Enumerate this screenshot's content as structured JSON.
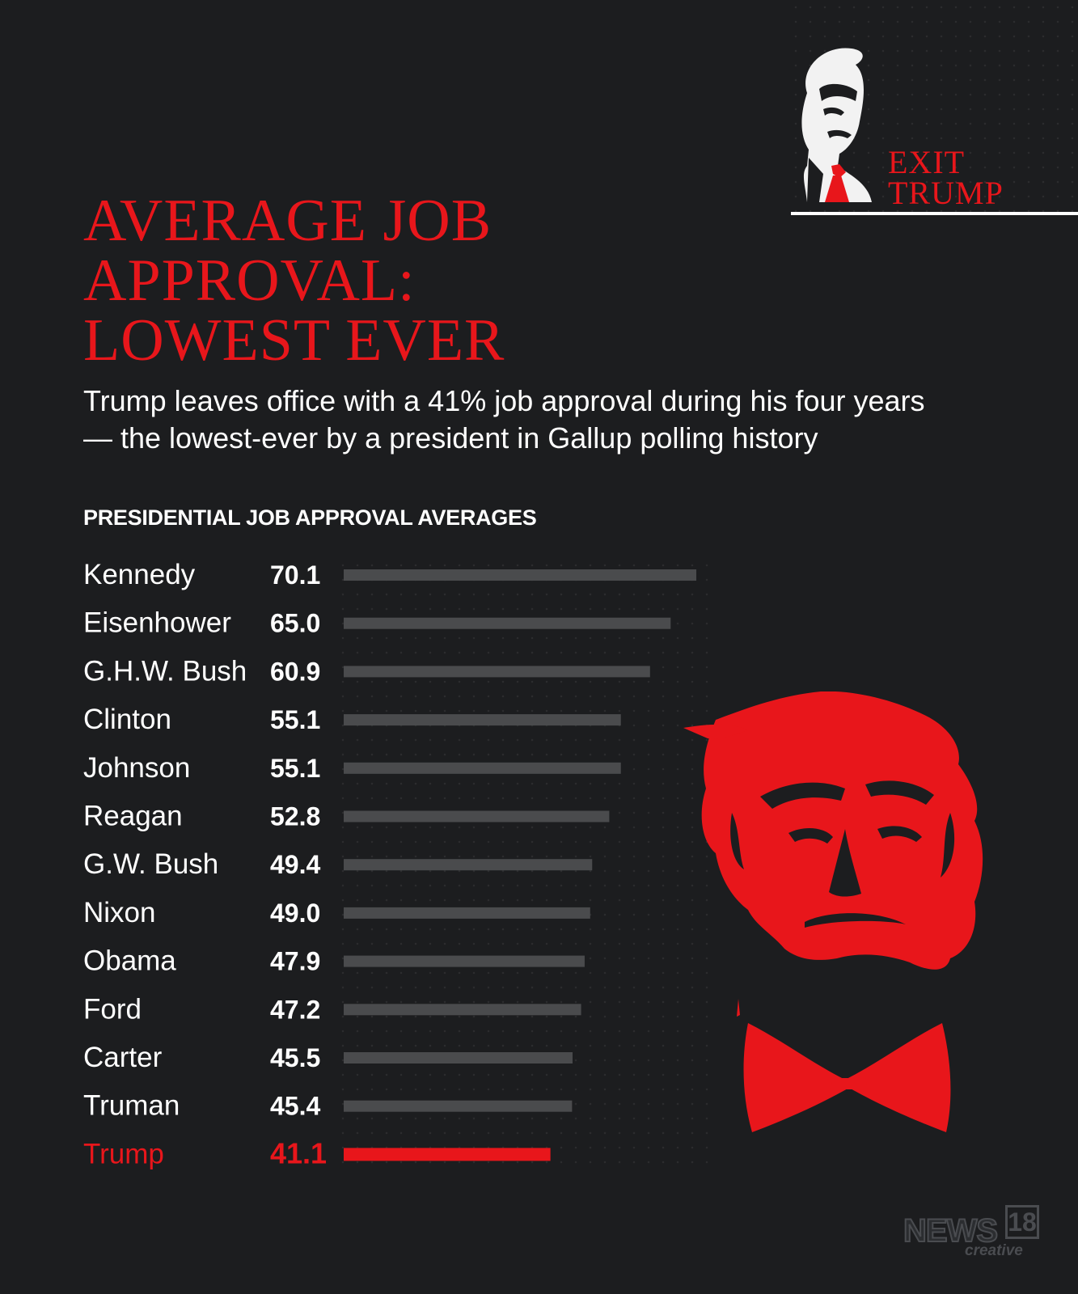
{
  "brand": {
    "exit_line1": "EXIT",
    "exit_line2": "TRUMP",
    "news_word": "NEWS",
    "news_number": "18",
    "news_sub": "creative"
  },
  "header": {
    "title_line1": "AVERAGE JOB",
    "title_line2": "APPROVAL:",
    "title_line3": "LOWEST EVER",
    "subtitle_line1": "Trump leaves office with a 41% job approval during his four years",
    "subtitle_line2": "— the lowest-ever by a president in Gallup polling history"
  },
  "colors": {
    "background": "#1c1d1f",
    "accent_red": "#e8161b",
    "bar_gray": "#4a4b4d",
    "text_white": "#ffffff"
  },
  "chart_data": {
    "type": "bar",
    "orientation": "horizontal",
    "title": "PRESIDENTIAL JOB APPROVAL AVERAGES",
    "categories": [
      "Kennedy",
      "Eisenhower",
      "G.H.W. Bush",
      "Clinton",
      "Johnson",
      "Reagan",
      "G.W. Bush",
      "Nixon",
      "Obama",
      "Ford",
      "Carter",
      "Truman",
      "Trump"
    ],
    "values": [
      70.1,
      65.0,
      60.9,
      55.1,
      55.1,
      52.8,
      49.4,
      49.0,
      47.9,
      47.2,
      45.5,
      45.4,
      41.1
    ],
    "value_labels": [
      "70.1",
      "65.0",
      "60.9",
      "55.1",
      "55.1",
      "52.8",
      "49.4",
      "49.0",
      "47.9",
      "47.2",
      "45.5",
      "45.4",
      "41.1"
    ],
    "highlight": "Trump",
    "grid": false,
    "legend": "none"
  }
}
